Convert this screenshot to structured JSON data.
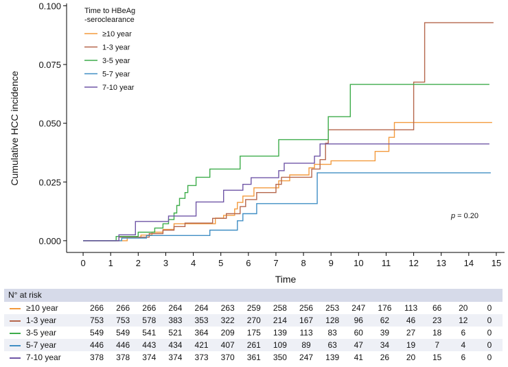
{
  "colors": {
    "axis": "#000000",
    "riskHeaderBg": "#d6dae9",
    "riskStripeBg": "#eef0f6"
  },
  "chart_data": {
    "type": "line",
    "step": true,
    "xlabel": "Time",
    "ylabel": "Cumulative HCC incidence",
    "xlim": [
      -0.6,
      15.3
    ],
    "ylim": [
      -0.005,
      0.101
    ],
    "xticks": [
      0,
      1,
      2,
      3,
      4,
      5,
      6,
      7,
      8,
      9,
      10,
      11,
      12,
      13,
      14,
      15
    ],
    "xtick_labels": [
      "0",
      "1",
      "2",
      "3",
      "4",
      "5",
      "6",
      "7",
      "8",
      "9",
      "10",
      "11",
      "12",
      "13",
      "14",
      "15"
    ],
    "yticks": [
      0,
      0.025,
      0.05,
      0.075,
      0.1
    ],
    "ytick_labels": [
      "0.000",
      "0.025",
      "0.050",
      "0.075",
      "0.100"
    ],
    "grid": false,
    "legend_title_lines": [
      "Time to HBeAg",
      "-seroclearance"
    ],
    "legend_position": "top-left",
    "annotation_p_label": "p",
    "annotation_p_value": "= 0.20",
    "series": [
      {
        "name": "≥10 year",
        "color": "#f39a3c",
        "points": [
          [
            0,
            0
          ],
          [
            1.6,
            0
          ],
          [
            1.6,
            0.0012
          ],
          [
            2.1,
            0.0012
          ],
          [
            2.1,
            0.0024
          ],
          [
            2.5,
            0.0024
          ],
          [
            2.5,
            0.0036
          ],
          [
            2.9,
            0.0036
          ],
          [
            2.9,
            0.0048
          ],
          [
            3.3,
            0.0048
          ],
          [
            3.3,
            0.0072
          ],
          [
            4.8,
            0.0072
          ],
          [
            4.8,
            0.0096
          ],
          [
            5.1,
            0.0096
          ],
          [
            5.1,
            0.0108
          ],
          [
            5.5,
            0.0108
          ],
          [
            5.5,
            0.0135
          ],
          [
            5.6,
            0.0135
          ],
          [
            5.6,
            0.0163
          ],
          [
            5.8,
            0.0163
          ],
          [
            5.8,
            0.019
          ],
          [
            6.2,
            0.019
          ],
          [
            6.2,
            0.0225
          ],
          [
            7.1,
            0.0225
          ],
          [
            7.1,
            0.0255
          ],
          [
            7.5,
            0.0255
          ],
          [
            7.5,
            0.028
          ],
          [
            8.2,
            0.028
          ],
          [
            8.2,
            0.031
          ],
          [
            8.4,
            0.031
          ],
          [
            8.4,
            0.0325
          ],
          [
            9.0,
            0.0325
          ],
          [
            9.0,
            0.034
          ],
          [
            10.6,
            0.034
          ],
          [
            10.6,
            0.038
          ],
          [
            11.1,
            0.038
          ],
          [
            11.1,
            0.044
          ],
          [
            11.3,
            0.044
          ],
          [
            11.3,
            0.0503
          ],
          [
            14.85,
            0.0503
          ]
        ]
      },
      {
        "name": "1-3 year",
        "color": "#b5664b",
        "points": [
          [
            0,
            0
          ],
          [
            1.3,
            0
          ],
          [
            1.3,
            0.0015
          ],
          [
            2.4,
            0.0015
          ],
          [
            2.4,
            0.003
          ],
          [
            2.9,
            0.003
          ],
          [
            2.9,
            0.0045
          ],
          [
            3.3,
            0.0045
          ],
          [
            3.3,
            0.006
          ],
          [
            3.7,
            0.006
          ],
          [
            3.7,
            0.0075
          ],
          [
            4.7,
            0.0075
          ],
          [
            4.7,
            0.0095
          ],
          [
            5.2,
            0.0095
          ],
          [
            5.2,
            0.0115
          ],
          [
            5.7,
            0.0115
          ],
          [
            5.7,
            0.0145
          ],
          [
            5.9,
            0.0145
          ],
          [
            5.9,
            0.0175
          ],
          [
            6.3,
            0.0175
          ],
          [
            6.3,
            0.0205
          ],
          [
            7.0,
            0.0205
          ],
          [
            7.0,
            0.024
          ],
          [
            7.2,
            0.024
          ],
          [
            7.2,
            0.027
          ],
          [
            8.3,
            0.027
          ],
          [
            8.3,
            0.0305
          ],
          [
            8.6,
            0.0305
          ],
          [
            8.6,
            0.0345
          ],
          [
            8.8,
            0.0345
          ],
          [
            8.8,
            0.0415
          ],
          [
            8.9,
            0.0415
          ],
          [
            8.9,
            0.0472
          ],
          [
            12.0,
            0.0472
          ],
          [
            12.0,
            0.0675
          ],
          [
            12.4,
            0.0675
          ],
          [
            12.4,
            0.0928
          ],
          [
            14.9,
            0.0928
          ]
        ]
      },
      {
        "name": "3-5 year",
        "color": "#3dac4a",
        "points": [
          [
            0,
            0
          ],
          [
            1.2,
            0
          ],
          [
            1.2,
            0.0018
          ],
          [
            2.0,
            0.0018
          ],
          [
            2.0,
            0.0036
          ],
          [
            2.6,
            0.0036
          ],
          [
            2.6,
            0.0054
          ],
          [
            2.9,
            0.0054
          ],
          [
            2.9,
            0.0072
          ],
          [
            3.1,
            0.0072
          ],
          [
            3.1,
            0.009
          ],
          [
            3.3,
            0.009
          ],
          [
            3.3,
            0.0118
          ],
          [
            3.4,
            0.0118
          ],
          [
            3.4,
            0.015
          ],
          [
            3.5,
            0.015
          ],
          [
            3.5,
            0.018
          ],
          [
            3.7,
            0.018
          ],
          [
            3.7,
            0.0205
          ],
          [
            3.8,
            0.0205
          ],
          [
            3.8,
            0.0235
          ],
          [
            4.1,
            0.0235
          ],
          [
            4.1,
            0.027
          ],
          [
            4.6,
            0.027
          ],
          [
            4.6,
            0.0305
          ],
          [
            5.7,
            0.0305
          ],
          [
            5.7,
            0.036
          ],
          [
            7.1,
            0.036
          ],
          [
            7.1,
            0.043
          ],
          [
            8.9,
            0.043
          ],
          [
            8.9,
            0.0528
          ],
          [
            9.7,
            0.0528
          ],
          [
            9.7,
            0.0665
          ],
          [
            14.75,
            0.0665
          ]
        ]
      },
      {
        "name": "5-7 year",
        "color": "#3f8ec4",
        "points": [
          [
            0,
            0
          ],
          [
            1.4,
            0
          ],
          [
            1.4,
            0.0011
          ],
          [
            2.3,
            0.0011
          ],
          [
            2.3,
            0.0022
          ],
          [
            4.6,
            0.0022
          ],
          [
            4.6,
            0.0045
          ],
          [
            5.6,
            0.0045
          ],
          [
            5.6,
            0.0085
          ],
          [
            5.8,
            0.0085
          ],
          [
            5.8,
            0.0115
          ],
          [
            6.3,
            0.0115
          ],
          [
            6.3,
            0.0158
          ],
          [
            8.5,
            0.0158
          ],
          [
            8.5,
            0.0289
          ],
          [
            14.8,
            0.0289
          ]
        ]
      },
      {
        "name": "7-10 year",
        "color": "#6f55a6",
        "points": [
          [
            0,
            0
          ],
          [
            1.3,
            0
          ],
          [
            1.3,
            0.0025
          ],
          [
            1.9,
            0.0025
          ],
          [
            1.9,
            0.0082
          ],
          [
            3.1,
            0.0082
          ],
          [
            3.1,
            0.0105
          ],
          [
            4.1,
            0.0105
          ],
          [
            4.1,
            0.0165
          ],
          [
            5.1,
            0.0165
          ],
          [
            5.1,
            0.0215
          ],
          [
            5.8,
            0.0215
          ],
          [
            5.8,
            0.024
          ],
          [
            6.1,
            0.024
          ],
          [
            6.1,
            0.0268
          ],
          [
            7.1,
            0.0268
          ],
          [
            7.1,
            0.0298
          ],
          [
            7.3,
            0.0298
          ],
          [
            7.3,
            0.033
          ],
          [
            8.4,
            0.033
          ],
          [
            8.4,
            0.036
          ],
          [
            8.6,
            0.036
          ],
          [
            8.6,
            0.0412
          ],
          [
            14.75,
            0.0412
          ]
        ]
      }
    ]
  },
  "risk_table": {
    "title": "N° at risk",
    "rows": [
      {
        "name": "≥10 year",
        "color": "#f39a3c",
        "values": [
          "266",
          "266",
          "266",
          "264",
          "264",
          "263",
          "259",
          "258",
          "256",
          "253",
          "247",
          "176",
          "113",
          "66",
          "20",
          "0"
        ]
      },
      {
        "name": "1-3 year",
        "color": "#b5664b",
        "values": [
          "753",
          "753",
          "578",
          "383",
          "353",
          "322",
          "270",
          "214",
          "167",
          "128",
          "96",
          "62",
          "46",
          "23",
          "12",
          "0"
        ]
      },
      {
        "name": "3-5 year",
        "color": "#3dac4a",
        "values": [
          "549",
          "549",
          "541",
          "521",
          "364",
          "209",
          "175",
          "139",
          "113",
          "83",
          "60",
          "39",
          "27",
          "18",
          "6",
          "0"
        ]
      },
      {
        "name": "5-7 year",
        "color": "#3f8ec4",
        "values": [
          "446",
          "446",
          "443",
          "434",
          "421",
          "407",
          "261",
          "109",
          "89",
          "63",
          "47",
          "34",
          "19",
          "7",
          "4",
          "0"
        ]
      },
      {
        "name": "7-10 year",
        "color": "#6f55a6",
        "values": [
          "378",
          "378",
          "374",
          "374",
          "373",
          "370",
          "361",
          "350",
          "247",
          "139",
          "41",
          "26",
          "20",
          "15",
          "6",
          "0"
        ]
      }
    ]
  }
}
